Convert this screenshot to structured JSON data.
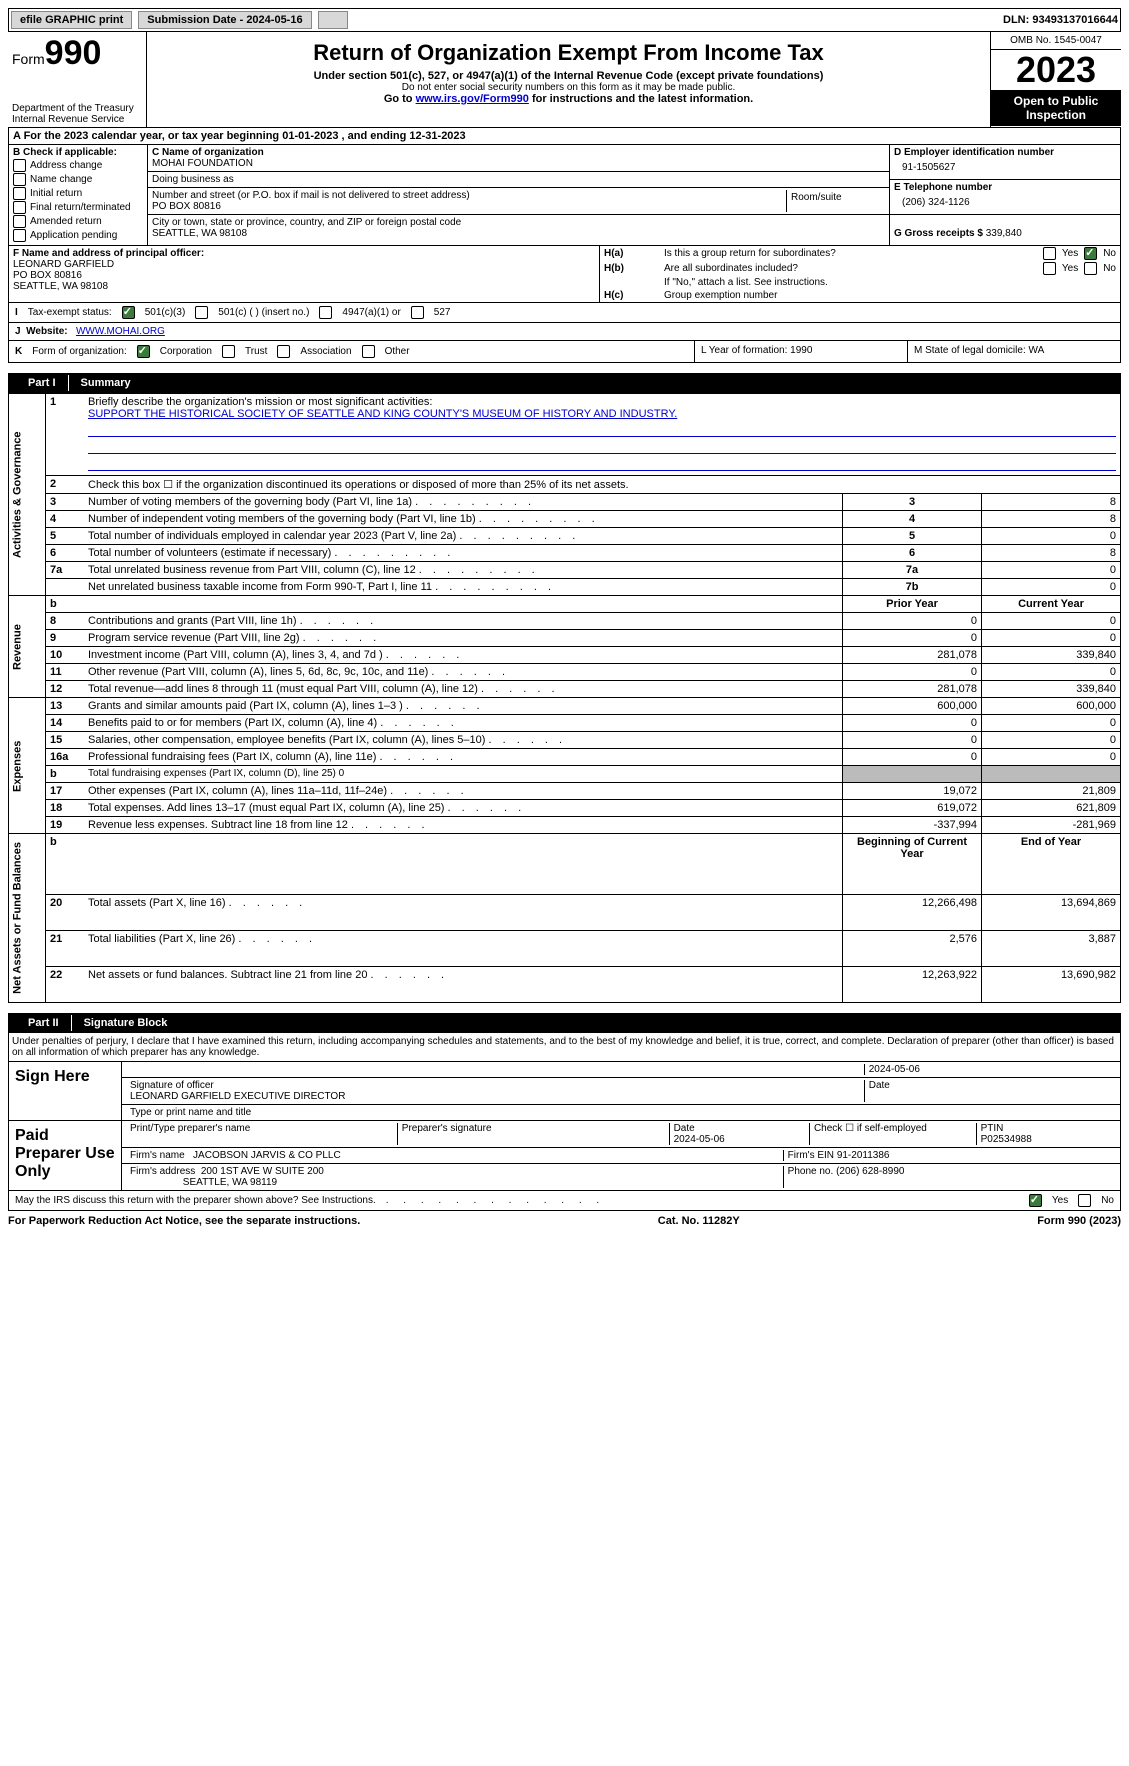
{
  "topbar": {
    "efile": "efile GRAPHIC print",
    "sub_label": "Submission Date - 2024-05-16",
    "dln_label": "DLN: 93493137016644"
  },
  "header": {
    "form_word": "Form",
    "form_num": "990",
    "dept": "Department of the Treasury\nInternal Revenue Service",
    "title": "Return of Organization Exempt From Income Tax",
    "sub": "Under section 501(c), 527, or 4947(a)(1) of the Internal Revenue Code (except private foundations)",
    "sub2": "Do not enter social security numbers on this form as it may be made public.",
    "goto_pre": "Go to ",
    "goto_link": "www.irs.gov/Form990",
    "goto_post": " for instructions and the latest information.",
    "omb": "OMB No. 1545-0047",
    "year": "2023",
    "open": "Open to Public Inspection"
  },
  "row_a": {
    "text_pre": "A For the 2023 calendar year, or tax year beginning ",
    "begin": "01-01-2023",
    "mid": " , and ending ",
    "end": "12-31-2023"
  },
  "col_b": {
    "label": "B Check if applicable:",
    "items": [
      "Address change",
      "Name change",
      "Initial return",
      "Final return/terminated",
      "Amended return",
      "Application pending"
    ]
  },
  "col_c": {
    "name_label": "C Name of organization",
    "name": "MOHAI FOUNDATION",
    "dba_label": "Doing business as",
    "dba": "",
    "addr_label": "Number and street (or P.O. box if mail is not delivered to street address)",
    "room_label": "Room/suite",
    "addr": "PO BOX 80816",
    "city_label": "City or town, state or province, country, and ZIP or foreign postal code",
    "city": "SEATTLE, WA  98108"
  },
  "col_d": {
    "ein_label": "D Employer identification number",
    "ein": "91-1505627",
    "tel_label": "E Telephone number",
    "tel": "(206) 324-1126",
    "gross_label": "G Gross receipts $ ",
    "gross": "339,840"
  },
  "col_f": {
    "label": "F Name and address of principal officer:",
    "name": "LEONARD GARFIELD",
    "addr1": "PO BOX 80816",
    "addr2": "SEATTLE, WA  98108"
  },
  "col_h": {
    "ha_label": "H(a)",
    "ha_q": "Is this a group return for subordinates?",
    "hb_label": "H(b)",
    "hb_q": "Are all subordinates included?",
    "hb_note": "If \"No,\" attach a list. See instructions.",
    "hc_label": "H(c)",
    "hc_q": "Group exemption number",
    "yes": "Yes",
    "no": "No"
  },
  "row_i": {
    "label": "I",
    "text": "Tax-exempt status:",
    "opts": [
      "501(c)(3)",
      "501(c) (  ) (insert no.)",
      "4947(a)(1) or",
      "527"
    ]
  },
  "row_j": {
    "label": "J",
    "text": "Website:",
    "val": "WWW.MOHAI.ORG"
  },
  "row_k": {
    "label": "K",
    "text": "Form of organization:",
    "opts": [
      "Corporation",
      "Trust",
      "Association",
      "Other"
    ]
  },
  "row_l": {
    "text": "L Year of formation: 1990"
  },
  "row_m": {
    "text": "M State of legal domicile: WA"
  },
  "part1_label": "Part I",
  "part1_title": "Summary",
  "summary": {
    "sections": [
      {
        "rot": "Activities & Governance",
        "rows": [
          {
            "n": "1",
            "desc": "Briefly describe the organization's mission or most significant activities:",
            "mission": "SUPPORT THE HISTORICAL SOCIETY OF SEATTLE AND KING COUNTY'S MUSEUM OF HISTORY AND INDUSTRY.",
            "span": true
          },
          {
            "n": "2",
            "desc": "Check this box ☐ if the organization discontinued its operations or disposed of more than 25% of its net assets.",
            "span": true
          },
          {
            "n": "3",
            "desc": "Number of voting members of the governing body (Part VI, line 1a)",
            "box": "3",
            "val": "8"
          },
          {
            "n": "4",
            "desc": "Number of independent voting members of the governing body (Part VI, line 1b)",
            "box": "4",
            "val": "8"
          },
          {
            "n": "5",
            "desc": "Total number of individuals employed in calendar year 2023 (Part V, line 2a)",
            "box": "5",
            "val": "0"
          },
          {
            "n": "6",
            "desc": "Total number of volunteers (estimate if necessary)",
            "box": "6",
            "val": "8"
          },
          {
            "n": "7a",
            "desc": "Total unrelated business revenue from Part VIII, column (C), line 12",
            "box": "7a",
            "val": "0"
          },
          {
            "n": "",
            "desc": "Net unrelated business taxable income from Form 990-T, Part I, line 11",
            "box": "7b",
            "val": "0"
          }
        ]
      },
      {
        "rot": "Revenue",
        "header_b": true,
        "col1": "Prior Year",
        "col2": "Current Year",
        "rows": [
          {
            "n": "8",
            "desc": "Contributions and grants (Part VIII, line 1h)",
            "v1": "0",
            "v2": "0"
          },
          {
            "n": "9",
            "desc": "Program service revenue (Part VIII, line 2g)",
            "v1": "0",
            "v2": "0"
          },
          {
            "n": "10",
            "desc": "Investment income (Part VIII, column (A), lines 3, 4, and 7d )",
            "v1": "281,078",
            "v2": "339,840"
          },
          {
            "n": "11",
            "desc": "Other revenue (Part VIII, column (A), lines 5, 6d, 8c, 9c, 10c, and 11e)",
            "v1": "0",
            "v2": "0"
          },
          {
            "n": "12",
            "desc": "Total revenue—add lines 8 through 11 (must equal Part VIII, column (A), line 12)",
            "v1": "281,078",
            "v2": "339,840"
          }
        ]
      },
      {
        "rot": "Expenses",
        "rows": [
          {
            "n": "13",
            "desc": "Grants and similar amounts paid (Part IX, column (A), lines 1–3 )",
            "v1": "600,000",
            "v2": "600,000"
          },
          {
            "n": "14",
            "desc": "Benefits paid to or for members (Part IX, column (A), line 4)",
            "v1": "0",
            "v2": "0"
          },
          {
            "n": "15",
            "desc": "Salaries, other compensation, employee benefits (Part IX, column (A), lines 5–10)",
            "v1": "0",
            "v2": "0"
          },
          {
            "n": "16a",
            "desc": "Professional fundraising fees (Part IX, column (A), line 11e)",
            "v1": "0",
            "v2": "0"
          },
          {
            "n": "b",
            "desc": "Total fundraising expenses (Part IX, column (D), line 25) 0",
            "grey": true
          },
          {
            "n": "17",
            "desc": "Other expenses (Part IX, column (A), lines 11a–11d, 11f–24e)",
            "v1": "19,072",
            "v2": "21,809"
          },
          {
            "n": "18",
            "desc": "Total expenses. Add lines 13–17 (must equal Part IX, column (A), line 25)",
            "v1": "619,072",
            "v2": "621,809"
          },
          {
            "n": "19",
            "desc": "Revenue less expenses. Subtract line 18 from line 12",
            "v1": "-337,994",
            "v2": "-281,969"
          }
        ]
      },
      {
        "rot": "Net Assets or Fund Balances",
        "header_b": true,
        "col1": "Beginning of Current Year",
        "col2": "End of Year",
        "rows": [
          {
            "n": "20",
            "desc": "Total assets (Part X, line 16)",
            "v1": "12,266,498",
            "v2": "13,694,869"
          },
          {
            "n": "21",
            "desc": "Total liabilities (Part X, line 26)",
            "v1": "2,576",
            "v2": "3,887"
          },
          {
            "n": "22",
            "desc": "Net assets or fund balances. Subtract line 21 from line 20",
            "v1": "12,263,922",
            "v2": "13,690,982"
          }
        ]
      }
    ]
  },
  "part2_label": "Part II",
  "part2_title": "Signature Block",
  "penalties": "Under penalties of perjury, I declare that I have examined this return, including accompanying schedules and statements, and to the best of my knowledge and belief, it is true, correct, and complete. Declaration of preparer (other than officer) is based on all information of which preparer has any knowledge.",
  "sign": {
    "here": "Sign Here",
    "sig_date": "2024-05-06",
    "sig_label": "Signature of officer",
    "date_label": "Date",
    "officer": "LEONARD GARFIELD  EXECUTIVE DIRECTOR",
    "type_label": "Type or print name and title"
  },
  "preparer": {
    "label": "Paid Preparer Use Only",
    "cols": [
      "Print/Type preparer's name",
      "Preparer's signature",
      "Date",
      "",
      "PTIN"
    ],
    "date": "2024-05-06",
    "check_label": "Check ☐ if self-employed",
    "ptin": "P02534988",
    "firm_name_label": "Firm's name",
    "firm_name": "JACOBSON JARVIS & CO PLLC",
    "firm_ein_label": "Firm's EIN",
    "firm_ein": "91-2011386",
    "firm_addr_label": "Firm's address",
    "firm_addr1": "200 1ST AVE W SUITE 200",
    "firm_addr2": "SEATTLE, WA  98119",
    "phone_label": "Phone no.",
    "phone": "(206) 628-8990"
  },
  "discuss": {
    "q": "May the IRS discuss this return with the preparer shown above? See Instructions.",
    "yes": "Yes",
    "no": "No"
  },
  "footer": {
    "left": "For Paperwork Reduction Act Notice, see the separate instructions.",
    "mid": "Cat. No. 11282Y",
    "right_pre": "Form ",
    "right_form": "990",
    "right_post": " (2023)"
  }
}
